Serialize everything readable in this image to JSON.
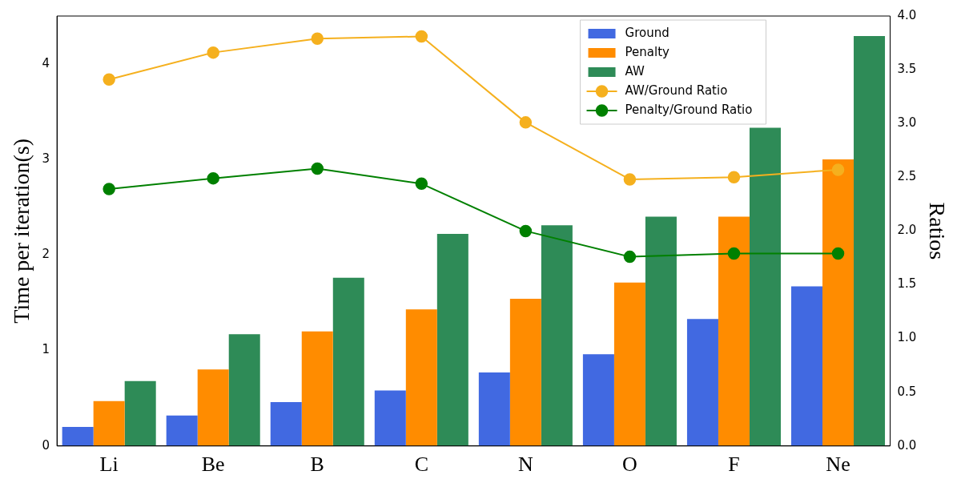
{
  "chart_data": {
    "type": "bar",
    "ylabel": "Time per iteration(s)",
    "y2label": "Ratios",
    "categories": [
      "Li",
      "Be",
      "B",
      "C",
      "N",
      "O",
      "F",
      "Ne"
    ],
    "series": [
      {
        "name": "Ground",
        "color": "#4169e1",
        "values": [
          0.2,
          0.32,
          0.46,
          0.58,
          0.77,
          0.96,
          1.33,
          1.67
        ]
      },
      {
        "name": "Penalty",
        "color": "#ff8c00",
        "values": [
          0.47,
          0.8,
          1.2,
          1.43,
          1.54,
          1.71,
          2.4,
          3.0
        ]
      },
      {
        "name": "AW",
        "color": "#2e8b57",
        "values": [
          0.68,
          1.17,
          1.76,
          2.22,
          2.31,
          2.4,
          3.33,
          4.29
        ]
      },
      {
        "name": "AW/Ground Ratio",
        "type": "line",
        "axis": "y2",
        "color": "#f5b01e",
        "values": [
          3.41,
          3.66,
          3.79,
          3.81,
          3.01,
          2.48,
          2.5,
          2.57
        ]
      },
      {
        "name": "Penalty/Ground Ratio",
        "type": "line",
        "axis": "y2",
        "color": "#008000",
        "values": [
          2.39,
          2.49,
          2.58,
          2.44,
          2.0,
          1.76,
          1.79,
          1.79
        ]
      }
    ],
    "ylim": [
      0,
      4.5
    ],
    "yticks": [
      0,
      1,
      2,
      3,
      4
    ],
    "y2lim": [
      0,
      4
    ],
    "y2ticks": [
      {
        "value": 0,
        "label": "0.0"
      },
      {
        "value": 0.5,
        "label": "0.5"
      },
      {
        "value": 1,
        "label": "1.0"
      },
      {
        "value": 1.5,
        "label": "1.5"
      },
      {
        "value": 2,
        "label": "2.0"
      },
      {
        "value": 2.5,
        "label": "2.5"
      },
      {
        "value": 3,
        "label": "3.0"
      },
      {
        "value": 3.5,
        "label": "3.5"
      },
      {
        "value": 4,
        "label": "4.0"
      }
    ],
    "legend": "top right",
    "marker": "circle",
    "line_style": "solid",
    "grid": false
  }
}
